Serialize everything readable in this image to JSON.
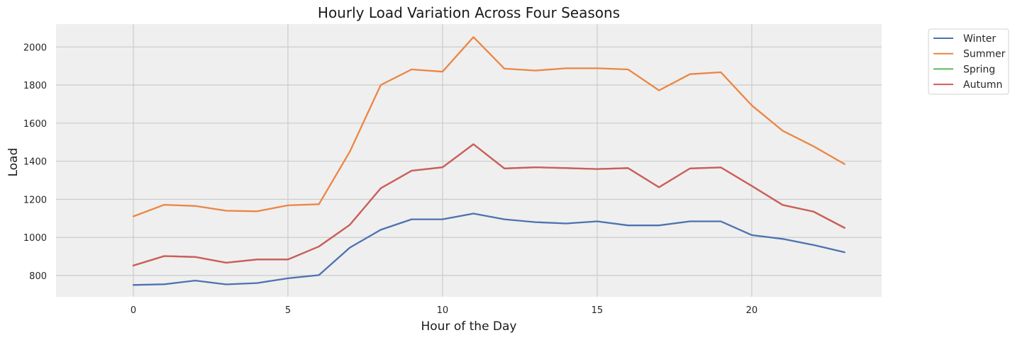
{
  "chart_data": {
    "type": "line",
    "title": "Hourly Load Variation Across Four Seasons",
    "xlabel": "Hour of the Day",
    "ylabel": "Load",
    "x": [
      0,
      1,
      2,
      3,
      4,
      5,
      6,
      7,
      8,
      9,
      10,
      11,
      12,
      13,
      14,
      15,
      16,
      17,
      18,
      19,
      20,
      21,
      22,
      23
    ],
    "xticks": [
      0,
      5,
      10,
      15,
      20
    ],
    "yticks": [
      800,
      1000,
      1200,
      1400,
      1600,
      1800,
      2000
    ],
    "xlim": [
      -2.5,
      24.2
    ],
    "ylim": [
      688,
      2120
    ],
    "grid": true,
    "legend_position": "top-right, outside plot",
    "series": [
      {
        "name": "Winter",
        "color": "#4c72b0",
        "values": [
          750,
          754,
          773,
          753,
          760,
          785,
          802,
          946,
          1040,
          1095,
          1095,
          1125,
          1095,
          1080,
          1073,
          1084,
          1063,
          1063,
          1084,
          1084,
          1012,
          992,
          960,
          922
        ]
      },
      {
        "name": "Summer",
        "color": "#ec8543",
        "values": [
          1110,
          1171,
          1165,
          1140,
          1137,
          1168,
          1174,
          1450,
          1800,
          1882,
          1870,
          2052,
          1886,
          1876,
          1888,
          1888,
          1882,
          1772,
          1857,
          1867,
          1693,
          1560,
          1478,
          1385
        ]
      },
      {
        "name": "Spring",
        "color": "#5cb85c",
        "values": [
          852,
          902,
          897,
          867,
          884,
          884,
          952,
          1066,
          1258,
          1350,
          1368,
          1489,
          1362,
          1368,
          1364,
          1359,
          1364,
          1263,
          1362,
          1367,
          1270,
          1170,
          1135,
          1050
        ]
      },
      {
        "name": "Autumn",
        "color": "#d15b5b",
        "values": [
          852,
          902,
          897,
          867,
          884,
          884,
          952,
          1066,
          1258,
          1350,
          1368,
          1489,
          1362,
          1368,
          1364,
          1359,
          1364,
          1263,
          1362,
          1367,
          1270,
          1170,
          1135,
          1050
        ]
      }
    ]
  }
}
